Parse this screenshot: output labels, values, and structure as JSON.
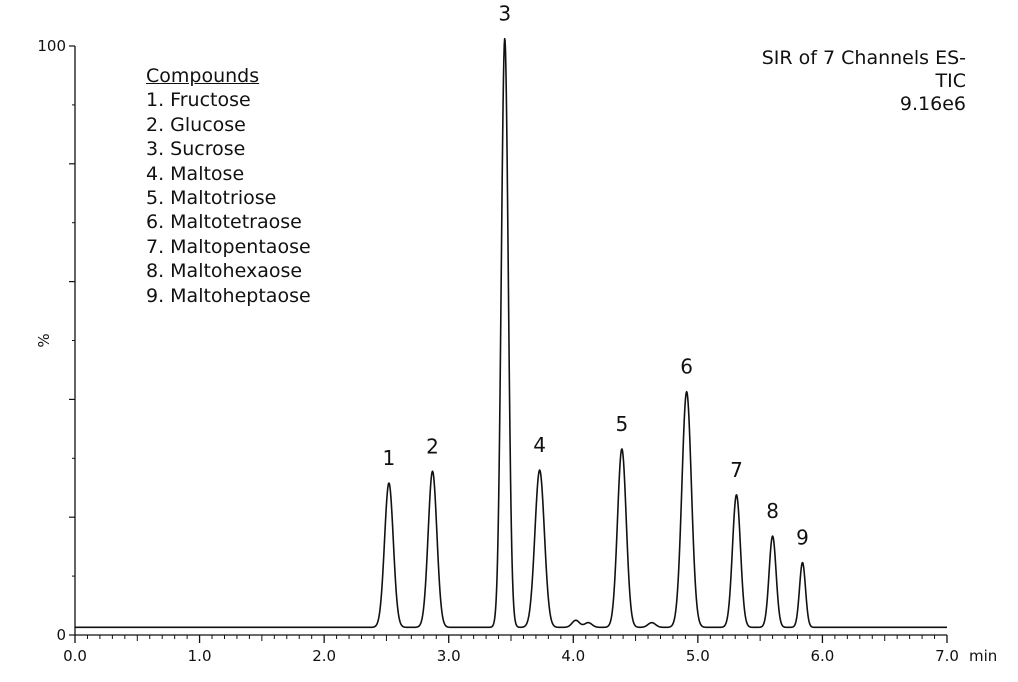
{
  "chart_data": {
    "type": "line",
    "title": "",
    "xlabel": "min",
    "ylabel": "%",
    "xlim": [
      0.0,
      7.0
    ],
    "ylim": [
      0,
      100
    ],
    "x_ticks": [
      "0.0",
      "1.0",
      "2.0",
      "3.0",
      "4.0",
      "5.0",
      "6.0",
      "7.0"
    ],
    "y_ticks": [
      "0",
      "100"
    ],
    "grid": false,
    "legend_placement": "top-left",
    "baseline": 1.3,
    "peaks": [
      {
        "label": "1",
        "rt": 2.52,
        "height": 24.5,
        "width": 0.035
      },
      {
        "label": "2",
        "rt": 2.87,
        "height": 26.5,
        "width": 0.035
      },
      {
        "label": "3",
        "rt": 3.45,
        "height": 100,
        "width": 0.028
      },
      {
        "label": "4",
        "rt": 3.73,
        "height": 26.7,
        "width": 0.038
      },
      {
        "label": "5",
        "rt": 4.39,
        "height": 30.3,
        "width": 0.035
      },
      {
        "label": "6",
        "rt": 4.91,
        "height": 40.0,
        "width": 0.038
      },
      {
        "label": "7",
        "rt": 5.31,
        "height": 22.5,
        "width": 0.032
      },
      {
        "label": "8",
        "rt": 5.6,
        "height": 15.5,
        "width": 0.028
      },
      {
        "label": "9",
        "rt": 5.84,
        "height": 11.0,
        "width": 0.024
      }
    ],
    "minor_peaks": [
      {
        "rt": 4.02,
        "height": 1.2,
        "width": 0.03
      },
      {
        "rt": 4.12,
        "height": 0.8,
        "width": 0.03
      },
      {
        "rt": 4.63,
        "height": 0.8,
        "width": 0.03
      }
    ]
  },
  "legend": {
    "title": "Compounds",
    "items": [
      "1. Fructose",
      "2. Glucose",
      "3. Sucrose",
      "4. Maltose",
      "5. Maltotriose",
      "6. Maltotetraose",
      "7. Maltopentaose",
      "8. Maltohexaose",
      "9. Maltoheptaose"
    ]
  },
  "info": {
    "line1": "SIR of 7 Channels ES-",
    "line2": "TIC",
    "line3": "9.16e6"
  },
  "colors": {
    "trace": "#111111",
    "axis": "#111111"
  }
}
